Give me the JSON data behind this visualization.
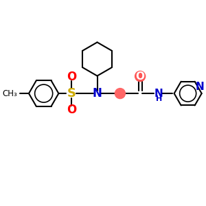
{
  "background_color": "#ffffff",
  "atom_colors": {
    "C": "#000000",
    "N": "#0000cc",
    "O": "#ff0000",
    "S": "#ccaa00",
    "H": "#000000"
  },
  "bond_color": "#000000",
  "bond_width": 1.5,
  "fig_width": 3.0,
  "fig_height": 3.0,
  "dpi": 100
}
